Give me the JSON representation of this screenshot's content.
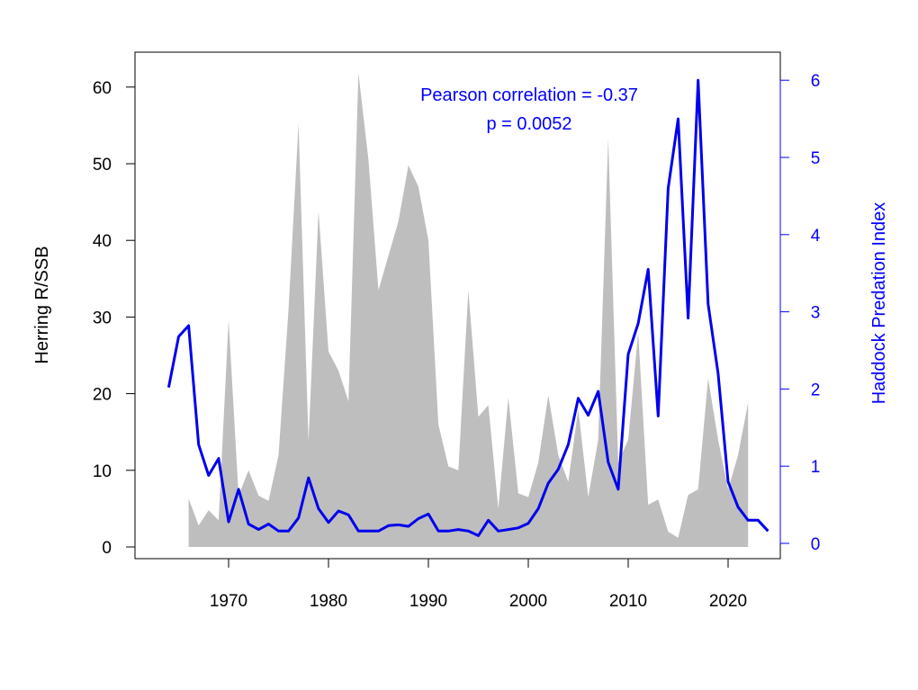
{
  "chart_data": {
    "type": "area",
    "title": "",
    "xlabel": "",
    "ylabel": "Herring R/SSB",
    "ylabel_right": "Haddock Predation Index",
    "xlim": [
      1964,
      2024
    ],
    "ylim": [
      0,
      62
    ],
    "ylim_right": [
      0,
      6
    ],
    "x_ticks": [
      1970,
      1980,
      1990,
      2000,
      2010,
      2020
    ],
    "y_ticks": [
      0,
      10,
      20,
      30,
      40,
      50,
      60
    ],
    "y_ticks_right": [
      0,
      1,
      2,
      3,
      4,
      5,
      6
    ],
    "grid": false,
    "legend": "none",
    "annotation": {
      "line1": "Pearson correlation = -0.37",
      "line2": "p = 0.0052"
    },
    "colors": {
      "area": "#bebebe",
      "line": "#0000ee",
      "axis_left": "#000000",
      "axis_right": "#0000ff"
    },
    "series": [
      {
        "name": "Herring R/SSB",
        "axis": "left",
        "style": "area",
        "x": [
          1966,
          1967,
          1968,
          1969,
          1970,
          1971,
          1972,
          1973,
          1974,
          1975,
          1976,
          1977,
          1978,
          1979,
          1980,
          1981,
          1982,
          1983,
          1984,
          1985,
          1986,
          1987,
          1988,
          1989,
          1990,
          1991,
          1992,
          1993,
          1994,
          1995,
          1996,
          1997,
          1998,
          1999,
          2000,
          2001,
          2002,
          2003,
          2004,
          2005,
          2006,
          2007,
          2008,
          2009,
          2010,
          2011,
          2012,
          2013,
          2014,
          2015,
          2016,
          2017,
          2018,
          2019,
          2020,
          2021,
          2022
        ],
        "values": [
          6.3,
          2.8,
          4.8,
          3.5,
          29.6,
          6.7,
          10.0,
          6.7,
          6.0,
          12.0,
          31.0,
          55.2,
          13.8,
          43.8,
          25.5,
          23.0,
          19.0,
          61.8,
          50.5,
          33.5,
          38.0,
          42.5,
          49.8,
          47.0,
          40.0,
          16.0,
          10.5,
          10.0,
          33.5,
          17.0,
          18.5,
          5.0,
          19.5,
          7.0,
          6.5,
          11.0,
          19.8,
          12.0,
          8.5,
          18.0,
          6.5,
          14.0,
          53.3,
          11.0,
          14.0,
          28.0,
          5.5,
          6.2,
          2.0,
          1.2,
          6.8,
          7.5,
          22.0,
          14.0,
          7.5,
          12.0,
          18.8
        ]
      },
      {
        "name": "Haddock Predation Index",
        "axis": "right",
        "style": "line",
        "x": [
          1964,
          1965,
          1966,
          1967,
          1968,
          1969,
          1970,
          1971,
          1972,
          1973,
          1974,
          1975,
          1976,
          1977,
          1978,
          1979,
          1980,
          1981,
          1982,
          1983,
          1984,
          1985,
          1986,
          1987,
          1988,
          1989,
          1990,
          1991,
          1992,
          1993,
          1994,
          1995,
          1996,
          1997,
          1998,
          1999,
          2000,
          2001,
          2002,
          2003,
          2004,
          2005,
          2006,
          2007,
          2008,
          2009,
          2010,
          2011,
          2012,
          2013,
          2014,
          2015,
          2016,
          2017,
          2018,
          2019,
          2020,
          2021,
          2022,
          2023,
          2024
        ],
        "values": [
          2.02,
          2.68,
          2.82,
          1.28,
          0.88,
          1.1,
          0.28,
          0.7,
          0.25,
          0.18,
          0.25,
          0.16,
          0.16,
          0.33,
          0.85,
          0.45,
          0.27,
          0.42,
          0.37,
          0.16,
          0.16,
          0.16,
          0.23,
          0.24,
          0.22,
          0.32,
          0.38,
          0.16,
          0.16,
          0.18,
          0.16,
          0.1,
          0.3,
          0.16,
          0.18,
          0.2,
          0.26,
          0.45,
          0.78,
          0.96,
          1.28,
          1.88,
          1.66,
          1.97,
          1.05,
          0.7,
          2.45,
          2.85,
          3.55,
          1.65,
          4.6,
          5.5,
          2.92,
          6.0,
          3.1,
          2.2,
          0.8,
          0.47,
          0.3,
          0.3,
          0.16
        ]
      }
    ]
  }
}
